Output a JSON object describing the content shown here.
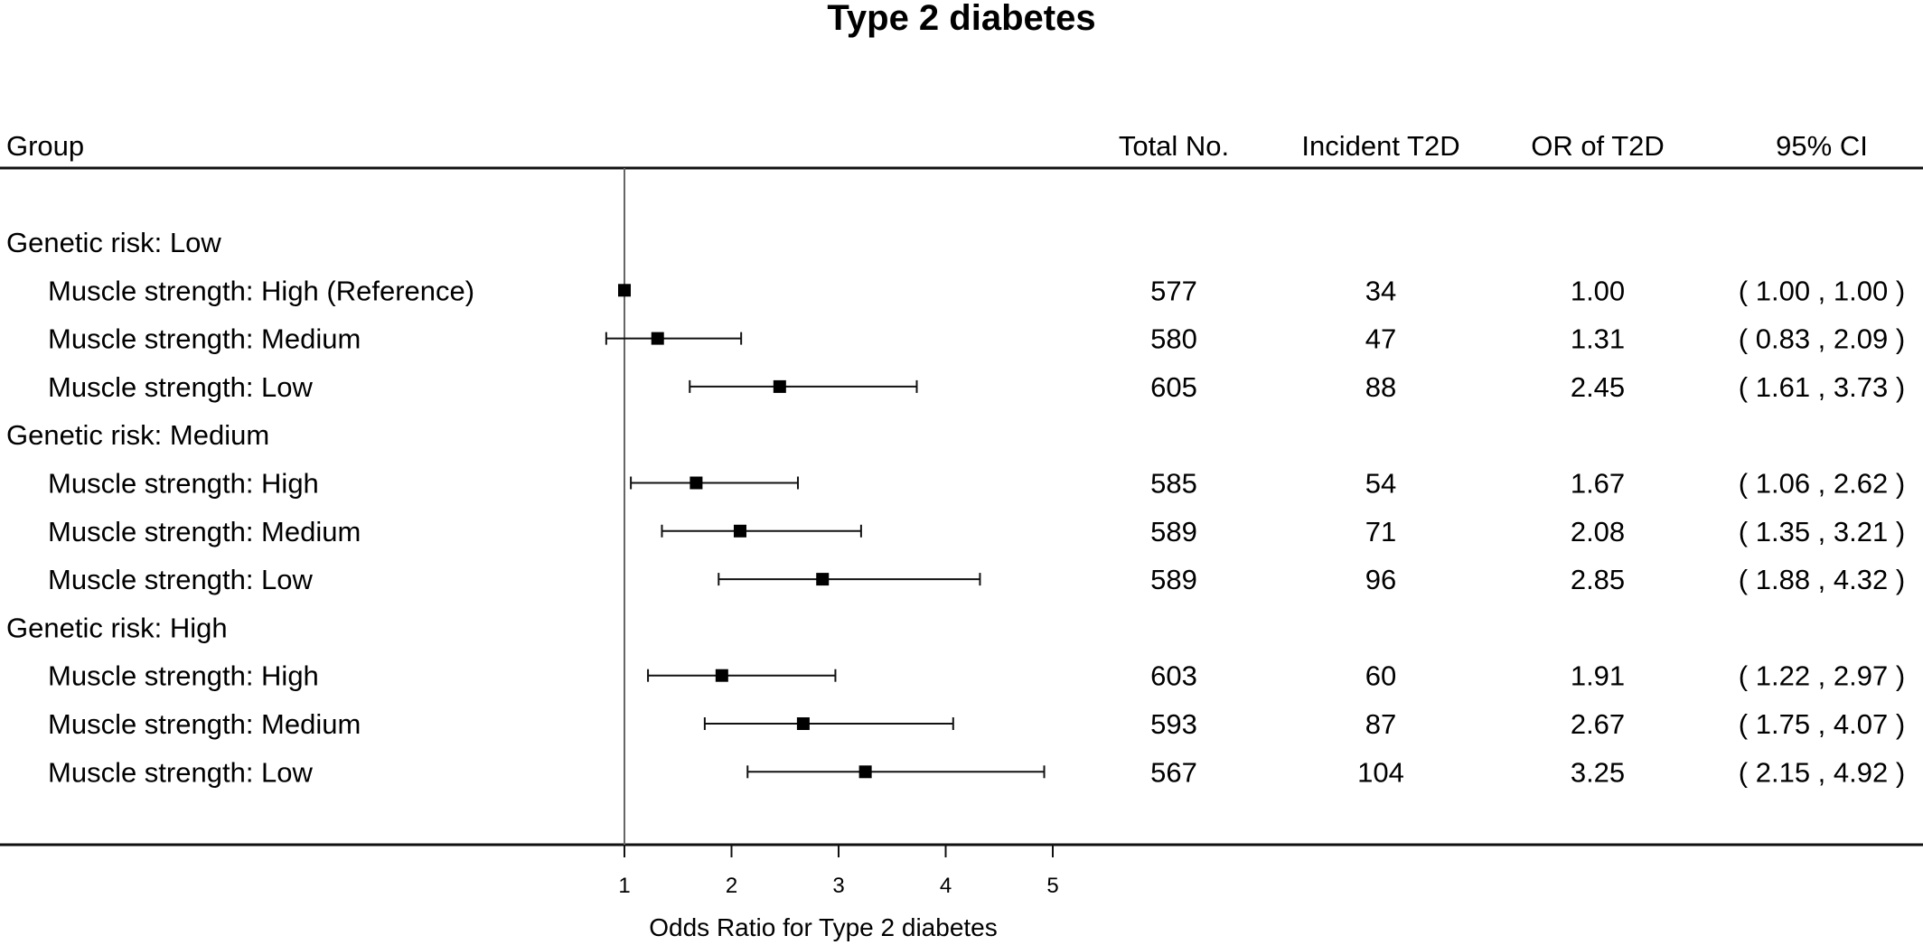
{
  "chart_data": {
    "type": "forest",
    "title": "Type 2 diabetes",
    "columns": {
      "group": "Group",
      "total": "Total No.",
      "incident": "Incident T2D",
      "or": "OR of T2D",
      "ci": "95% CI"
    },
    "xlabel": "Odds Ratio for Type 2 diabetes",
    "xlim": [
      0.83,
      5
    ],
    "xticks": [
      "1",
      "2",
      "3",
      "4",
      "5"
    ],
    "reference_line": 1,
    "groups": [
      {
        "label": "Genetic risk: Low",
        "rows": [
          {
            "label": "Muscle strength: High (Reference)",
            "total": "577",
            "incident": "34",
            "or_text": "1.00",
            "ci_text": "( 1.00 , 1.00 )",
            "or": 1.0,
            "lo": 1.0,
            "hi": 1.0
          },
          {
            "label": "Muscle strength: Medium",
            "total": "580",
            "incident": "47",
            "or_text": "1.31",
            "ci_text": "( 0.83 , 2.09 )",
            "or": 1.31,
            "lo": 0.83,
            "hi": 2.09
          },
          {
            "label": "Muscle strength: Low",
            "total": "605",
            "incident": "88",
            "or_text": "2.45",
            "ci_text": "( 1.61 , 3.73 )",
            "or": 2.45,
            "lo": 1.61,
            "hi": 3.73
          }
        ]
      },
      {
        "label": "Genetic risk: Medium",
        "rows": [
          {
            "label": "Muscle strength: High",
            "total": "585",
            "incident": "54",
            "or_text": "1.67",
            "ci_text": "( 1.06 , 2.62 )",
            "or": 1.67,
            "lo": 1.06,
            "hi": 2.62
          },
          {
            "label": "Muscle strength: Medium",
            "total": "589",
            "incident": "71",
            "or_text": "2.08",
            "ci_text": "( 1.35 , 3.21 )",
            "or": 2.08,
            "lo": 1.35,
            "hi": 3.21
          },
          {
            "label": "Muscle strength: Low",
            "total": "589",
            "incident": "96",
            "or_text": "2.85",
            "ci_text": "( 1.88 , 4.32 )",
            "or": 2.85,
            "lo": 1.88,
            "hi": 4.32
          }
        ]
      },
      {
        "label": "Genetic risk: High",
        "rows": [
          {
            "label": "Muscle strength: High",
            "total": "603",
            "incident": "60",
            "or_text": "1.91",
            "ci_text": "( 1.22 , 2.97 )",
            "or": 1.91,
            "lo": 1.22,
            "hi": 2.97
          },
          {
            "label": "Muscle strength: Medium",
            "total": "593",
            "incident": "87",
            "or_text": "2.67",
            "ci_text": "( 1.75 , 4.07 )",
            "or": 2.67,
            "lo": 1.75,
            "hi": 4.07
          },
          {
            "label": "Muscle strength: Low",
            "total": "567",
            "incident": "104",
            "or_text": "3.25",
            "ci_text": "( 2.15 , 4.92 )",
            "or": 3.25,
            "lo": 2.15,
            "hi": 4.92
          }
        ]
      }
    ]
  }
}
